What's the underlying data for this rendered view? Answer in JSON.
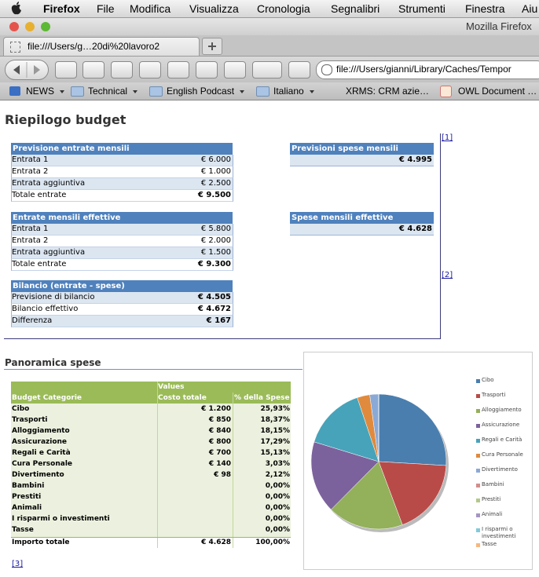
{
  "menubar": {
    "items": [
      "Firefox",
      "File",
      "Modifica",
      "Visualizza",
      "Cronologia",
      "Segnalibri",
      "Strumenti",
      "Finestra",
      "Aiu"
    ]
  },
  "window": {
    "title": "Mozilla Firefox"
  },
  "tab": {
    "title": "file:///Users/g…20di%20lavoro2"
  },
  "toolbar": {
    "url": "file:///Users/gianni/Library/Caches/Tempor"
  },
  "bookmarks": [
    "NEWS",
    "Technical",
    "English Podcast",
    "Italiano",
    "XRMS: CRM azie…",
    "OWL Document …"
  ],
  "page": {
    "title": "Riepilogo budget",
    "links": [
      "[1]",
      "[2]",
      "[3]"
    ],
    "left_tables": [
      {
        "header": "Previsione entrate mensili",
        "rows": [
          [
            "Entrata 1",
            "€ 6.000"
          ],
          [
            "Entrata 2",
            "€ 1.000"
          ],
          [
            "Entrata aggiuntiva",
            "€ 2.500"
          ],
          [
            "Totale entrate",
            "€ 9.500"
          ]
        ]
      },
      {
        "header": "Entrate mensili effettive",
        "rows": [
          [
            "Entrata 1",
            "€ 5.800"
          ],
          [
            "Entrata 2",
            "€ 2.000"
          ],
          [
            "Entrata aggiuntiva",
            "€ 1.500"
          ],
          [
            "Totale entrate",
            "€ 9.300"
          ]
        ]
      },
      {
        "header": "Bilancio (entrate - spese)",
        "rows": [
          [
            "Previsione di bilancio",
            "€ 4.505"
          ],
          [
            "Bilancio effettivo",
            "€ 4.672"
          ],
          [
            "Differenza",
            "€ 167"
          ]
        ]
      }
    ],
    "right_tables": [
      {
        "header": "Previsioni spese mensili",
        "value": "€ 4.995"
      },
      {
        "header": "Spese mensili effettive",
        "value": "€ 4.628"
      }
    ],
    "section_title": "Panoramica spese",
    "spending_table": {
      "group_header": "Values",
      "columns": [
        "Budget Categorie",
        "Costo totale",
        "% della Spese"
      ],
      "rows": [
        {
          "category": "Cibo",
          "cost": "€ 1.200",
          "pct": "25,93%"
        },
        {
          "category": "Trasporti",
          "cost": "€ 850",
          "pct": "18,37%"
        },
        {
          "category": "Alloggiamento",
          "cost": "€ 840",
          "pct": "18,15%"
        },
        {
          "category": "Assicurazione",
          "cost": "€ 800",
          "pct": "17,29%"
        },
        {
          "category": "Regali e Carità",
          "cost": "€ 700",
          "pct": "15,13%"
        },
        {
          "category": "Cura Personale",
          "cost": "€ 140",
          "pct": "3,03%"
        },
        {
          "category": "Divertimento",
          "cost": "€ 98",
          "pct": "2,12%"
        },
        {
          "category": "Bambini",
          "pct": "0,00%"
        },
        {
          "category": "Prestiti",
          "pct": "0,00%"
        },
        {
          "category": "Animali",
          "pct": "0,00%"
        },
        {
          "category": "I risparmi o investimenti",
          "pct": "0,00%"
        },
        {
          "category": "Tasse",
          "pct": "0,00%"
        }
      ],
      "total": {
        "category": "Importo totale",
        "cost": "€ 4.628",
        "pct": "100,00%"
      }
    },
    "pie": {
      "type": "pie",
      "labels": [
        "Cibo",
        "Trasporti",
        "Alloggiamento",
        "Assicurazione",
        "Regali e Carità",
        "Cura Personale",
        "Divertimento",
        "Bambini",
        "Prestiti",
        "Animali",
        "I risparmi o investimenti",
        "Tasse"
      ],
      "values": [
        25.93,
        18.37,
        18.15,
        17.29,
        15.13,
        3.03,
        2.12,
        0,
        0,
        0,
        0,
        0
      ],
      "colors": [
        "#4a7eae",
        "#b84b48",
        "#93b05a",
        "#7c629d",
        "#47a3b9",
        "#e08a3e",
        "#8aa9d6",
        "#d38d8b",
        "#b3c98b",
        "#a595c2",
        "#82cad9",
        "#f6b77e"
      ]
    }
  }
}
